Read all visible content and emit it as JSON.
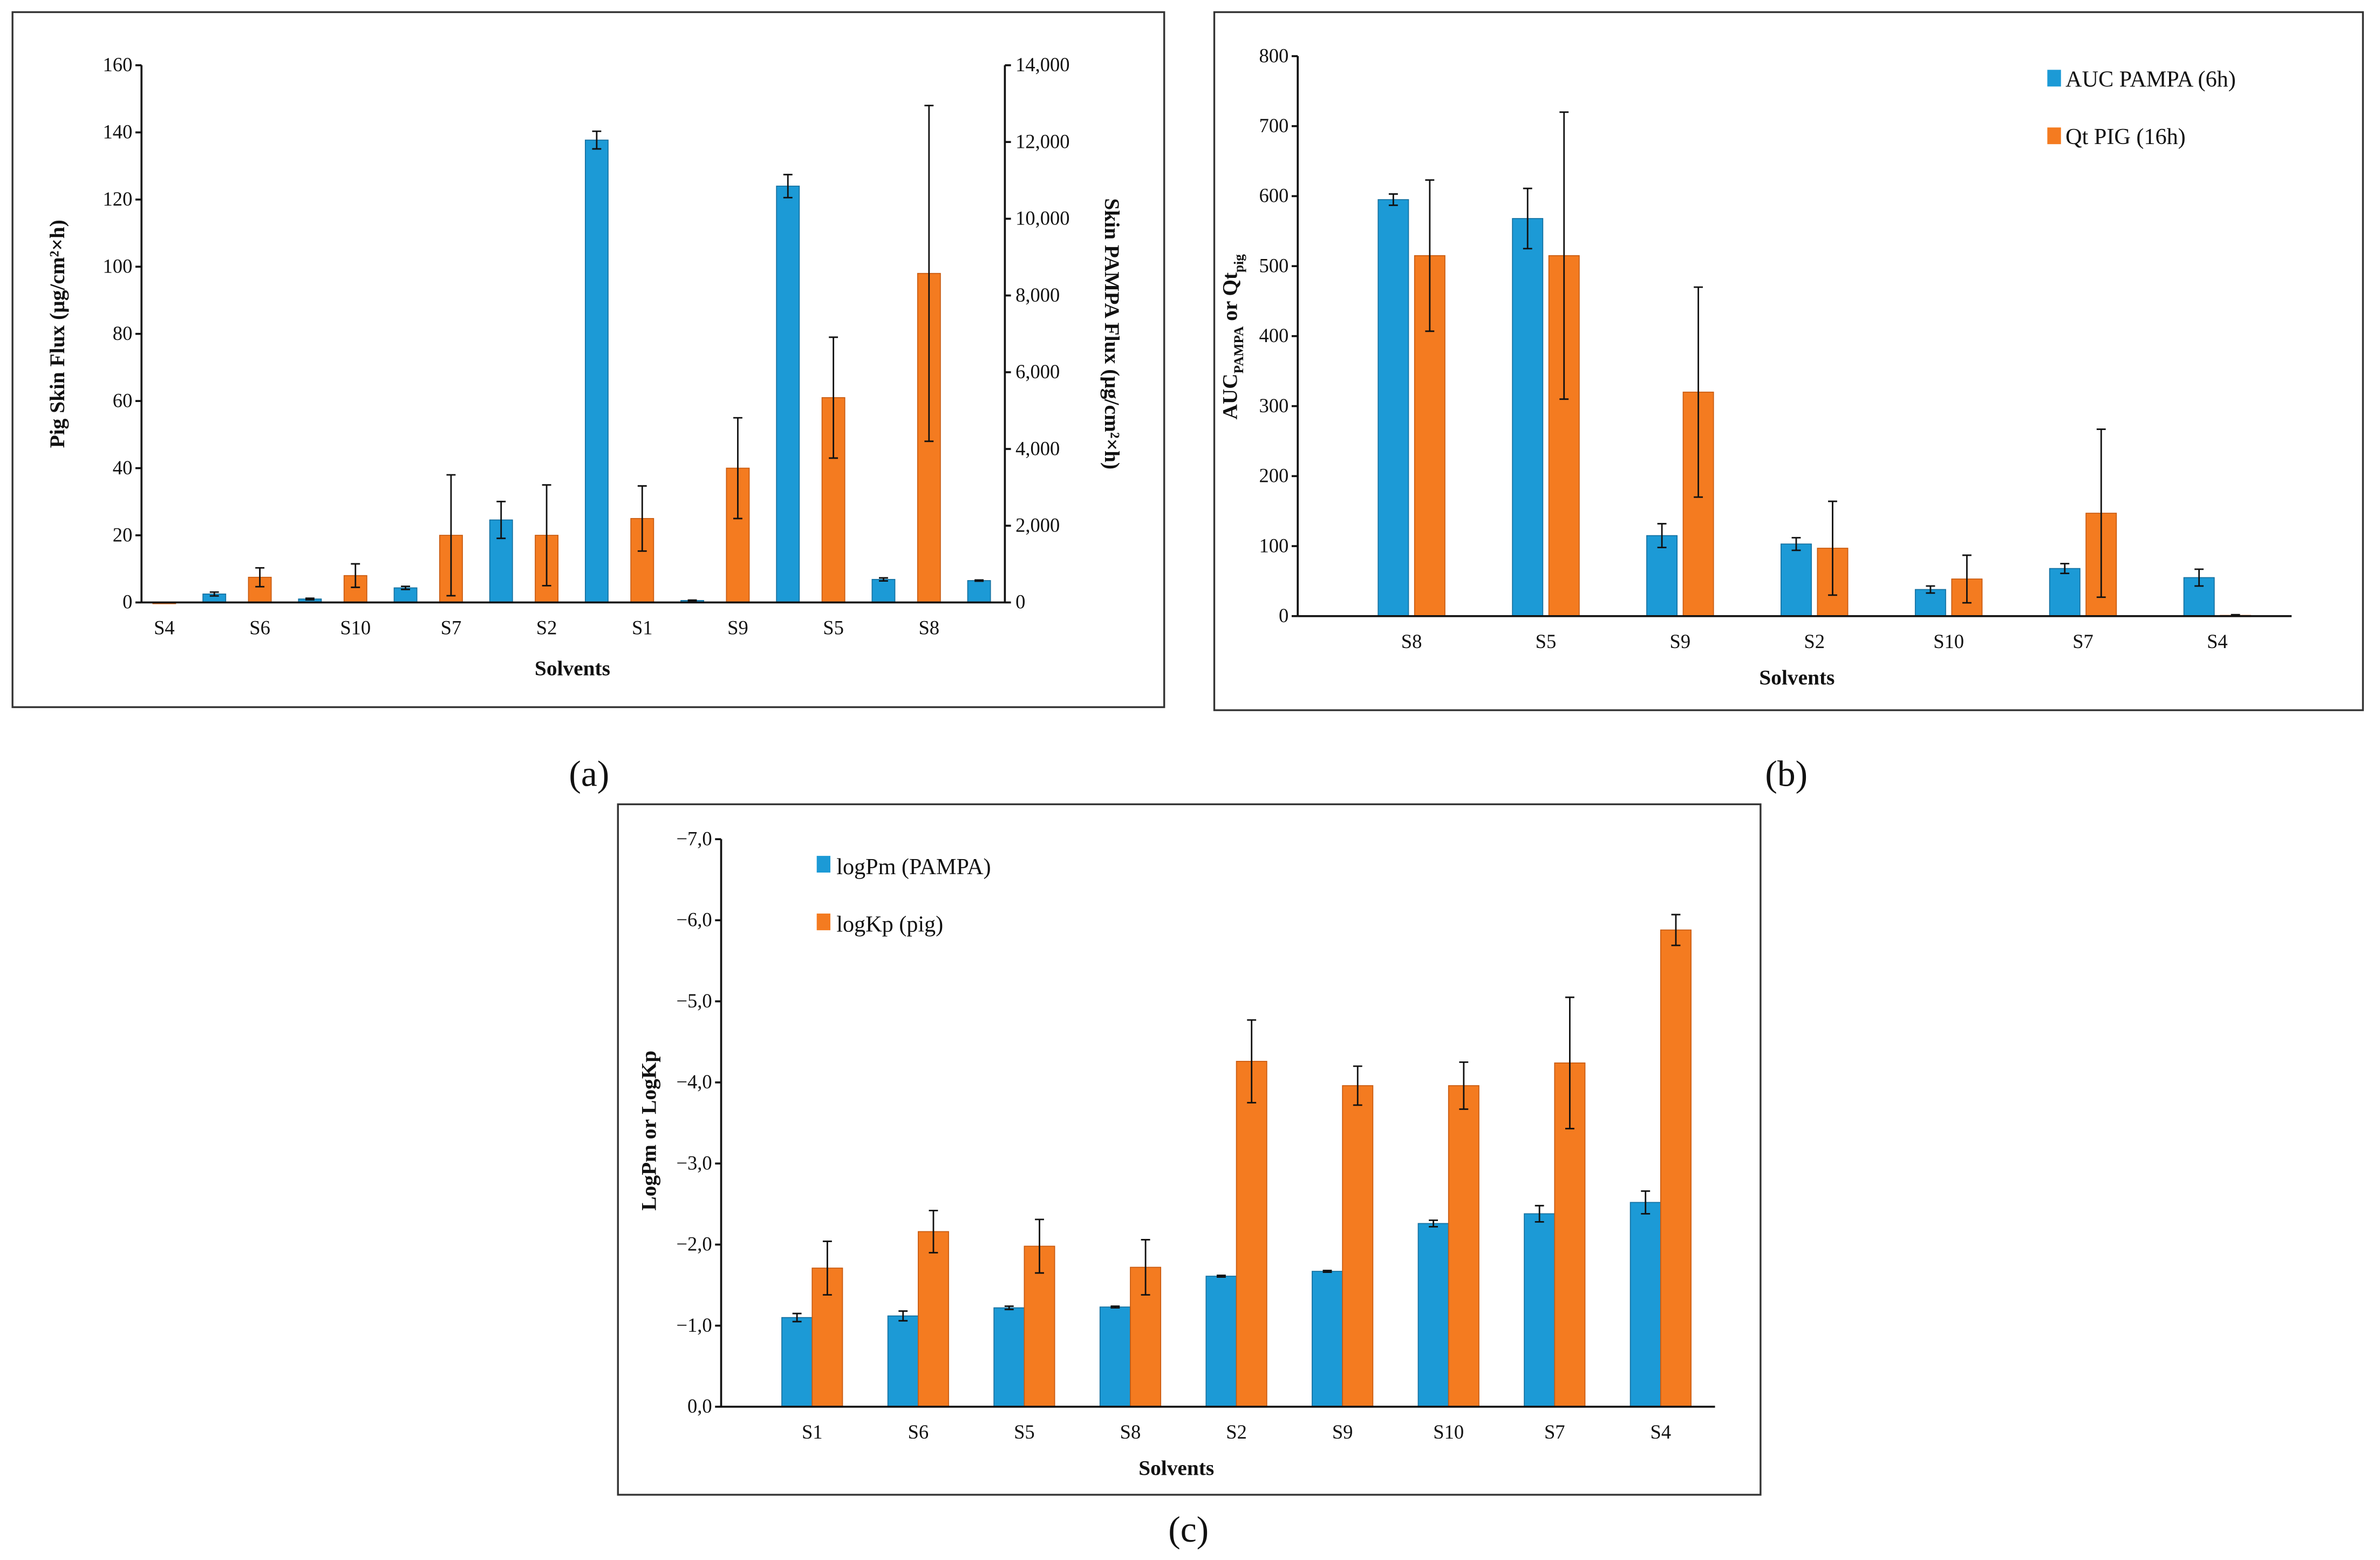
{
  "colors": {
    "blue": "#1c9ad6",
    "orange": "#f47b20",
    "blue_edge": "#1470a0",
    "orange_edge": "#c85a10"
  },
  "chart_data": [
    {
      "id": "a",
      "type": "bar",
      "caption": "(a)",
      "xlabel": "Solvents",
      "ylabel": "Pig Skin Flux (µg/cm²×h)",
      "ylabel_right": "Skin PAMPA Flux (µg/cm²×h)",
      "ylim": [
        0,
        160
      ],
      "ylim_right": [
        0,
        14000
      ],
      "yticks": [
        "0",
        "20",
        "40",
        "60",
        "80",
        "100",
        "120",
        "140",
        "160"
      ],
      "yticks_right": [
        "0",
        "2,000",
        "4,000",
        "6,000",
        "8,000",
        "10,000",
        "12,000",
        "14,000"
      ],
      "categories": [
        "S4",
        "S6",
        "S10",
        "S7",
        "S2",
        "S1",
        "S9",
        "S5",
        "S8"
      ],
      "series": [
        {
          "name": "Pig skin flux",
          "axis": "left",
          "color": "orange",
          "values": [
            0,
            7.5,
            8,
            20,
            20,
            25,
            40,
            61,
            98
          ],
          "errors": [
            0,
            2.8,
            3.5,
            18,
            15,
            9.7,
            15,
            18,
            50
          ]
        },
        {
          "name": "Skin PAMPA flux",
          "axis": "right",
          "color": "blue",
          "values": [
            220,
            90,
            380,
            2150,
            12050,
            50,
            10850,
            600,
            570
          ],
          "errors": [
            50,
            20,
            40,
            480,
            230,
            10,
            300,
            40,
            15
          ]
        }
      ]
    },
    {
      "id": "b",
      "type": "bar",
      "caption": "(b)",
      "xlabel": "Solvents",
      "ylabel": "AUC",
      "ylabel_sub1": "PAMPA",
      "ylabel_mid": " or Qt",
      "ylabel_sub2": "pig",
      "ylim": [
        0,
        800
      ],
      "yticks": [
        "0",
        "100",
        "200",
        "300",
        "400",
        "500",
        "600",
        "700",
        "800"
      ],
      "categories": [
        "S8",
        "S5",
        "S9",
        "S2",
        "S10",
        "S7",
        "S4"
      ],
      "legend": "top-right",
      "series": [
        {
          "name": "AUC PAMPA (6h)",
          "color": "blue",
          "values": [
            595,
            568,
            115,
            103,
            38,
            68,
            55
          ],
          "errors": [
            8,
            43,
            17,
            9,
            5,
            7,
            12
          ]
        },
        {
          "name": "Qt PIG (16h)",
          "color": "orange",
          "values": [
            515,
            515,
            320,
            97,
            53,
            147,
            1
          ],
          "errors": [
            108,
            205,
            150,
            67,
            34,
            120,
            1
          ]
        }
      ]
    },
    {
      "id": "c",
      "type": "bar",
      "caption": "(c)",
      "xlabel": "Solvents",
      "ylabel": "LogPm  or LogKp",
      "ylim": [
        0,
        -7
      ],
      "yticks": [
        "0,0",
        "−1,0",
        "−2,0",
        "−3,0",
        "−4,0",
        "−5,0",
        "−6,0",
        "−7,0"
      ],
      "categories": [
        "S1",
        "S6",
        "S5",
        "S8",
        "S2",
        "S9",
        "S10",
        "S7",
        "S4"
      ],
      "legend": "top-left",
      "series": [
        {
          "name": "logPm (PAMPA)",
          "color": "blue",
          "values": [
            -1.1,
            -1.12,
            -1.22,
            -1.23,
            -1.61,
            -1.67,
            -2.26,
            -2.38,
            -2.52
          ],
          "errors": [
            0.05,
            0.06,
            0.02,
            0.01,
            0.01,
            0.01,
            0.04,
            0.1,
            0.14
          ]
        },
        {
          "name": "logKp (pig)",
          "color": "orange",
          "values": [
            -1.71,
            -2.16,
            -1.98,
            -1.72,
            -4.26,
            -3.96,
            -3.96,
            -4.24,
            -5.88
          ],
          "errors": [
            0.33,
            0.26,
            0.33,
            0.34,
            0.51,
            0.24,
            0.29,
            0.81,
            0.19
          ]
        }
      ]
    }
  ]
}
